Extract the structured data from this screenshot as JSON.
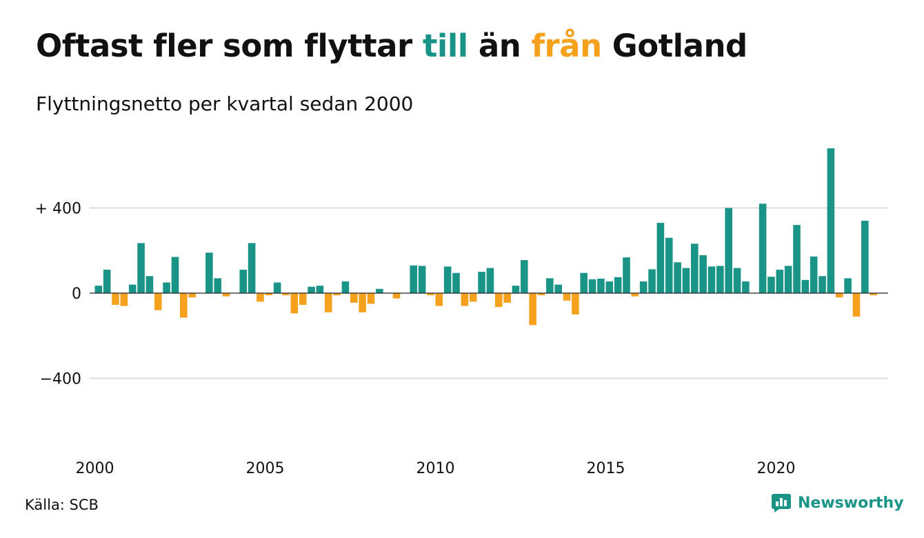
{
  "title": {
    "part1": "Oftast fler som flyttar ",
    "part2": "till",
    "part3": " än ",
    "part4": "från",
    "part5": " Gotland"
  },
  "subtitle": "Flyttningsnetto per kvartal sedan 2000",
  "source": "Källa: SCB",
  "brand": "Newsworthy",
  "colors": {
    "positive": "#1a9487",
    "negative": "#f5a11d",
    "grid": "#dddddd",
    "zero": "#222222"
  },
  "chart_data": {
    "type": "bar",
    "title": "Oftast fler som flyttar till än från Gotland",
    "subtitle": "Flyttningsnetto per kvartal sedan 2000",
    "x_start": "2000 Q1",
    "ylim": [
      -700,
      700
    ],
    "y_ticks": [
      {
        "value": 400,
        "label": "+ 400"
      },
      {
        "value": 0,
        "label": "0"
      },
      {
        "value": -400,
        "label": "−400"
      }
    ],
    "x_ticks": [
      {
        "year": 2000,
        "label": "2000"
      },
      {
        "year": 2005,
        "label": "2005"
      },
      {
        "year": 2010,
        "label": "2010"
      },
      {
        "year": 2015,
        "label": "2015"
      },
      {
        "year": 2020,
        "label": "2020"
      }
    ],
    "grid": true,
    "values": [
      35,
      110,
      -55,
      -60,
      40,
      235,
      80,
      -80,
      50,
      170,
      -115,
      -20,
      0,
      190,
      70,
      -15,
      0,
      110,
      235,
      -40,
      -10,
      50,
      -10,
      -95,
      -55,
      30,
      35,
      -90,
      -10,
      55,
      -45,
      -90,
      -50,
      20,
      0,
      -25,
      0,
      130,
      128,
      -10,
      -60,
      125,
      95,
      -60,
      -40,
      100,
      118,
      -65,
      -45,
      35,
      155,
      -150,
      -10,
      70,
      40,
      -35,
      -100,
      95,
      65,
      68,
      55,
      75,
      168,
      -15,
      55,
      112,
      330,
      260,
      145,
      118,
      232,
      178,
      125,
      128,
      400,
      118,
      55,
      0,
      420,
      77,
      110,
      128,
      320,
      62,
      172,
      80,
      680,
      -20,
      70,
      -110,
      340,
      -10
    ]
  }
}
